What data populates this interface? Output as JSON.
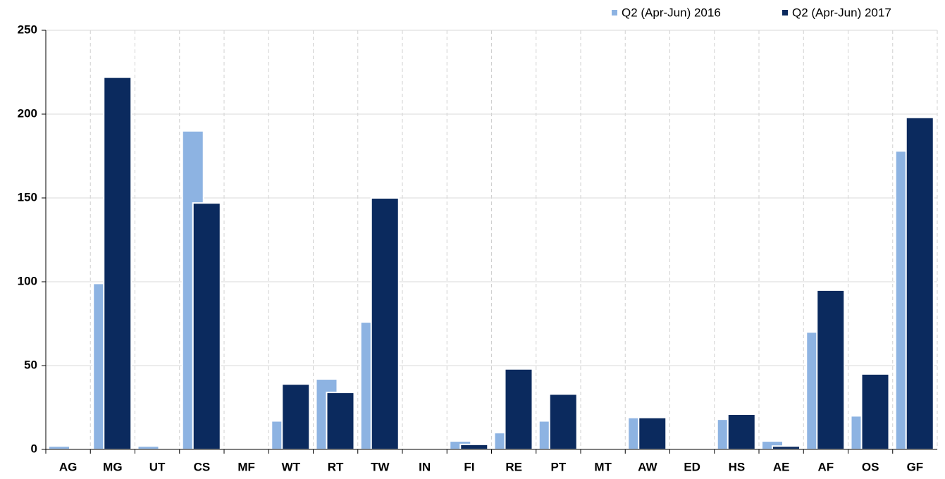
{
  "chart_data": {
    "type": "bar",
    "categories": [
      "AG",
      "MG",
      "UT",
      "CS",
      "MF",
      "WT",
      "RT",
      "TW",
      "IN",
      "FI",
      "RE",
      "PT",
      "MT",
      "AW",
      "ED",
      "HS",
      "AE",
      "AF",
      "OS",
      "GF"
    ],
    "series": [
      {
        "name": "Q2 (Apr-Jun) 2016",
        "color": "#8db3e2",
        "values": [
          2,
          99,
          2,
          190,
          0,
          17,
          42,
          76,
          0,
          5,
          10,
          17,
          0,
          19,
          0,
          18,
          5,
          70,
          20,
          178
        ]
      },
      {
        "name": "Q2 (Apr-Jun) 2017",
        "color": "#0b2a5e",
        "values": [
          0,
          222,
          0,
          147,
          0,
          39,
          34,
          150,
          0,
          3,
          48,
          33,
          0,
          19,
          0,
          21,
          2,
          95,
          45,
          198
        ]
      }
    ],
    "ylim": [
      0,
      250
    ],
    "yticks": [
      0,
      50,
      100,
      150,
      200,
      250
    ],
    "grid": true,
    "legend": "top-right"
  }
}
